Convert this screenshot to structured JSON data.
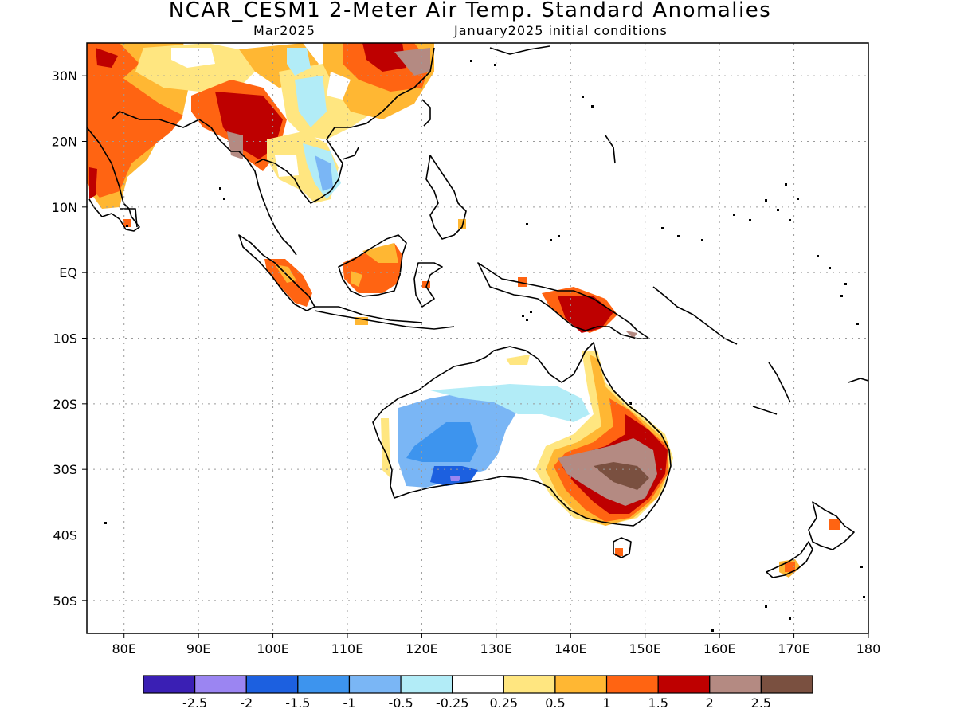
{
  "title": "NCAR_CESM1 2-Meter Air Temp. Standard Anomalies",
  "valid_month": "Mar2025",
  "init_conditions": "January2025 initial conditions",
  "map": {
    "lon_range": [
      75,
      180
    ],
    "lat_range": [
      -55,
      35
    ],
    "lon_ticks": [
      {
        "value": 80,
        "label": "80E"
      },
      {
        "value": 90,
        "label": "90E"
      },
      {
        "value": 100,
        "label": "100E"
      },
      {
        "value": 110,
        "label": "110E"
      },
      {
        "value": 120,
        "label": "120E"
      },
      {
        "value": 130,
        "label": "130E"
      },
      {
        "value": 140,
        "label": "140E"
      },
      {
        "value": 150,
        "label": "150E"
      },
      {
        "value": 160,
        "label": "160E"
      },
      {
        "value": 170,
        "label": "170E"
      },
      {
        "value": 180,
        "label": "180"
      }
    ],
    "lat_ticks": [
      {
        "value": 30,
        "label": "30N"
      },
      {
        "value": 20,
        "label": "20N"
      },
      {
        "value": 10,
        "label": "10N"
      },
      {
        "value": 0,
        "label": "EQ"
      },
      {
        "value": -10,
        "label": "10S"
      },
      {
        "value": -20,
        "label": "20S"
      },
      {
        "value": -30,
        "label": "30S"
      },
      {
        "value": -40,
        "label": "40S"
      },
      {
        "value": -50,
        "label": "50S"
      }
    ],
    "gridlines": true
  },
  "colorbar": {
    "colors": [
      "#3a1fb4",
      "#9b85f2",
      "#1c60e0",
      "#3d94ee",
      "#7ab6f5",
      "#b2ecf7",
      "#ffffff",
      "#ffe680",
      "#ffb733",
      "#ff6412",
      "#be0000",
      "#b48a82",
      "#7a5040"
    ],
    "labels": [
      "-2.5",
      "-2",
      "-1.5",
      "-1",
      "-0.5",
      "-0.25",
      "0.25",
      "0.5",
      "1",
      "1.5",
      "2",
      "2.5"
    ]
  }
}
